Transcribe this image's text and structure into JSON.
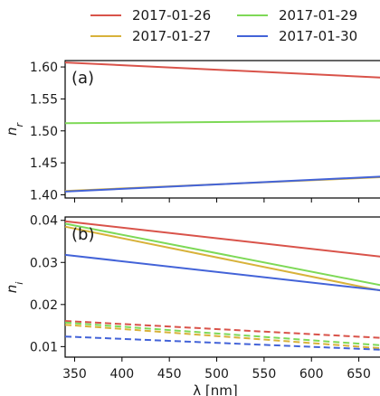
{
  "legend": [
    {
      "label": "2017-01-26",
      "color": "#d9534a"
    },
    {
      "label": "2017-01-27",
      "color": "#d8b23a"
    },
    {
      "label": "2017-01-29",
      "color": "#7ed957"
    },
    {
      "label": "2017-01-30",
      "color": "#4363d8"
    }
  ],
  "x_axis": {
    "label": "λ [nm]",
    "range": [
      340,
      680
    ],
    "ticks": [
      350,
      400,
      450,
      500,
      550,
      600,
      650
    ]
  },
  "chart_data": [
    {
      "type": "line",
      "panel_label": "(a)",
      "ylabel": "n_r",
      "ylim": [
        1.395,
        1.61
      ],
      "yticks": [
        "1.40",
        "1.45",
        "1.50",
        "1.55",
        "1.60"
      ],
      "series": [
        {
          "name": "2017-01-26",
          "color": "#d9534a",
          "style": "solid",
          "x": [
            340,
            680
          ],
          "y": [
            1.607,
            1.583
          ]
        },
        {
          "name": "2017-01-27",
          "color": "#d8b23a",
          "style": "solid",
          "x": [
            340,
            680
          ],
          "y": [
            1.406,
            1.428
          ]
        },
        {
          "name": "2017-01-29",
          "color": "#7ed957",
          "style": "solid",
          "x": [
            340,
            680
          ],
          "y": [
            1.512,
            1.516
          ]
        },
        {
          "name": "2017-01-30",
          "color": "#4363d8",
          "style": "solid",
          "x": [
            340,
            680
          ],
          "y": [
            1.405,
            1.429
          ]
        }
      ]
    },
    {
      "type": "line",
      "panel_label": "(b)",
      "ylabel": "n_i",
      "ylim": [
        0.0075,
        0.0408
      ],
      "yticks": [
        "0.01",
        "0.02",
        "0.03",
        "0.04"
      ],
      "series": [
        {
          "name": "2017-01-26",
          "color": "#d9534a",
          "style": "solid",
          "x": [
            340,
            680
          ],
          "y": [
            0.0398,
            0.0312
          ]
        },
        {
          "name": "2017-01-27",
          "color": "#d8b23a",
          "style": "solid",
          "x": [
            340,
            680
          ],
          "y": [
            0.0385,
            0.023
          ]
        },
        {
          "name": "2017-01-29",
          "color": "#7ed957",
          "style": "solid",
          "x": [
            340,
            680
          ],
          "y": [
            0.0392,
            0.0243
          ]
        },
        {
          "name": "2017-01-30",
          "color": "#4363d8",
          "style": "solid",
          "x": [
            340,
            680
          ],
          "y": [
            0.0318,
            0.0232
          ]
        },
        {
          "name": "2017-01-26",
          "color": "#d9534a",
          "style": "dashed",
          "x": [
            340,
            680
          ],
          "y": [
            0.0161,
            0.012
          ]
        },
        {
          "name": "2017-01-27",
          "color": "#d8b23a",
          "style": "dashed",
          "x": [
            340,
            680
          ],
          "y": [
            0.0152,
            0.0095
          ]
        },
        {
          "name": "2017-01-29",
          "color": "#7ed957",
          "style": "dashed",
          "x": [
            340,
            680
          ],
          "y": [
            0.0157,
            0.0102
          ]
        },
        {
          "name": "2017-01-30",
          "color": "#4363d8",
          "style": "dashed",
          "x": [
            340,
            680
          ],
          "y": [
            0.0124,
            0.0092
          ]
        }
      ]
    }
  ]
}
